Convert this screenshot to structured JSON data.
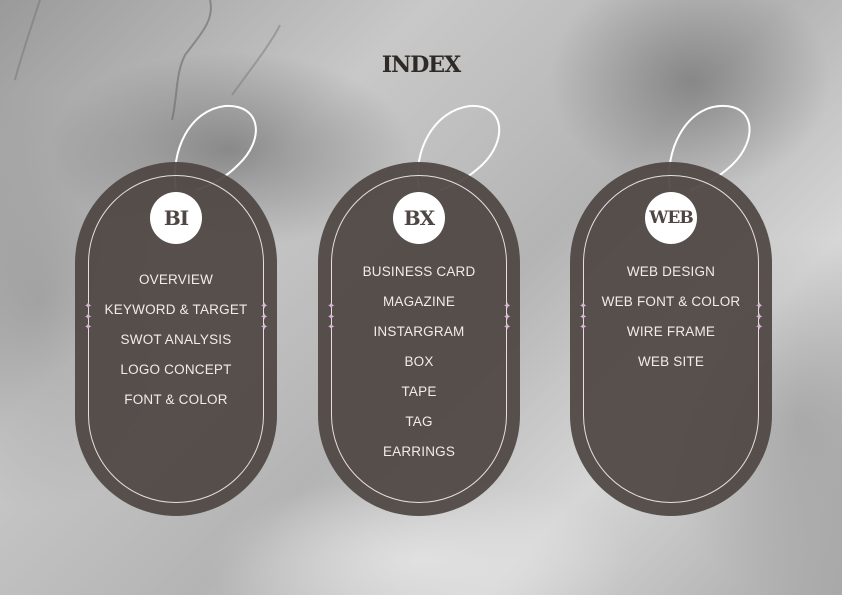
{
  "title": "INDEX",
  "colors": {
    "tag": "#4e4643",
    "accent": "#d9b4d4",
    "text": "#f1ecea",
    "title": "#2e2a28"
  },
  "tags": [
    {
      "label": "BI",
      "items": [
        "OVERVIEW",
        "KEYWORD & TARGET",
        "SWOT ANALYSIS",
        "LOGO CONCEPT",
        "FONT & COLOR"
      ]
    },
    {
      "label": "BX",
      "items": [
        "BUSINESS CARD",
        "MAGAZINE",
        "INSTARGRAM",
        "BOX",
        "TAPE",
        "TAG",
        "EARRINGS"
      ]
    },
    {
      "label": "WEB",
      "items": [
        "WEB DESIGN",
        "WEB FONT & COLOR",
        "WIRE FRAME",
        "WEB SITE"
      ]
    }
  ],
  "ornament": "sparkle-icon"
}
